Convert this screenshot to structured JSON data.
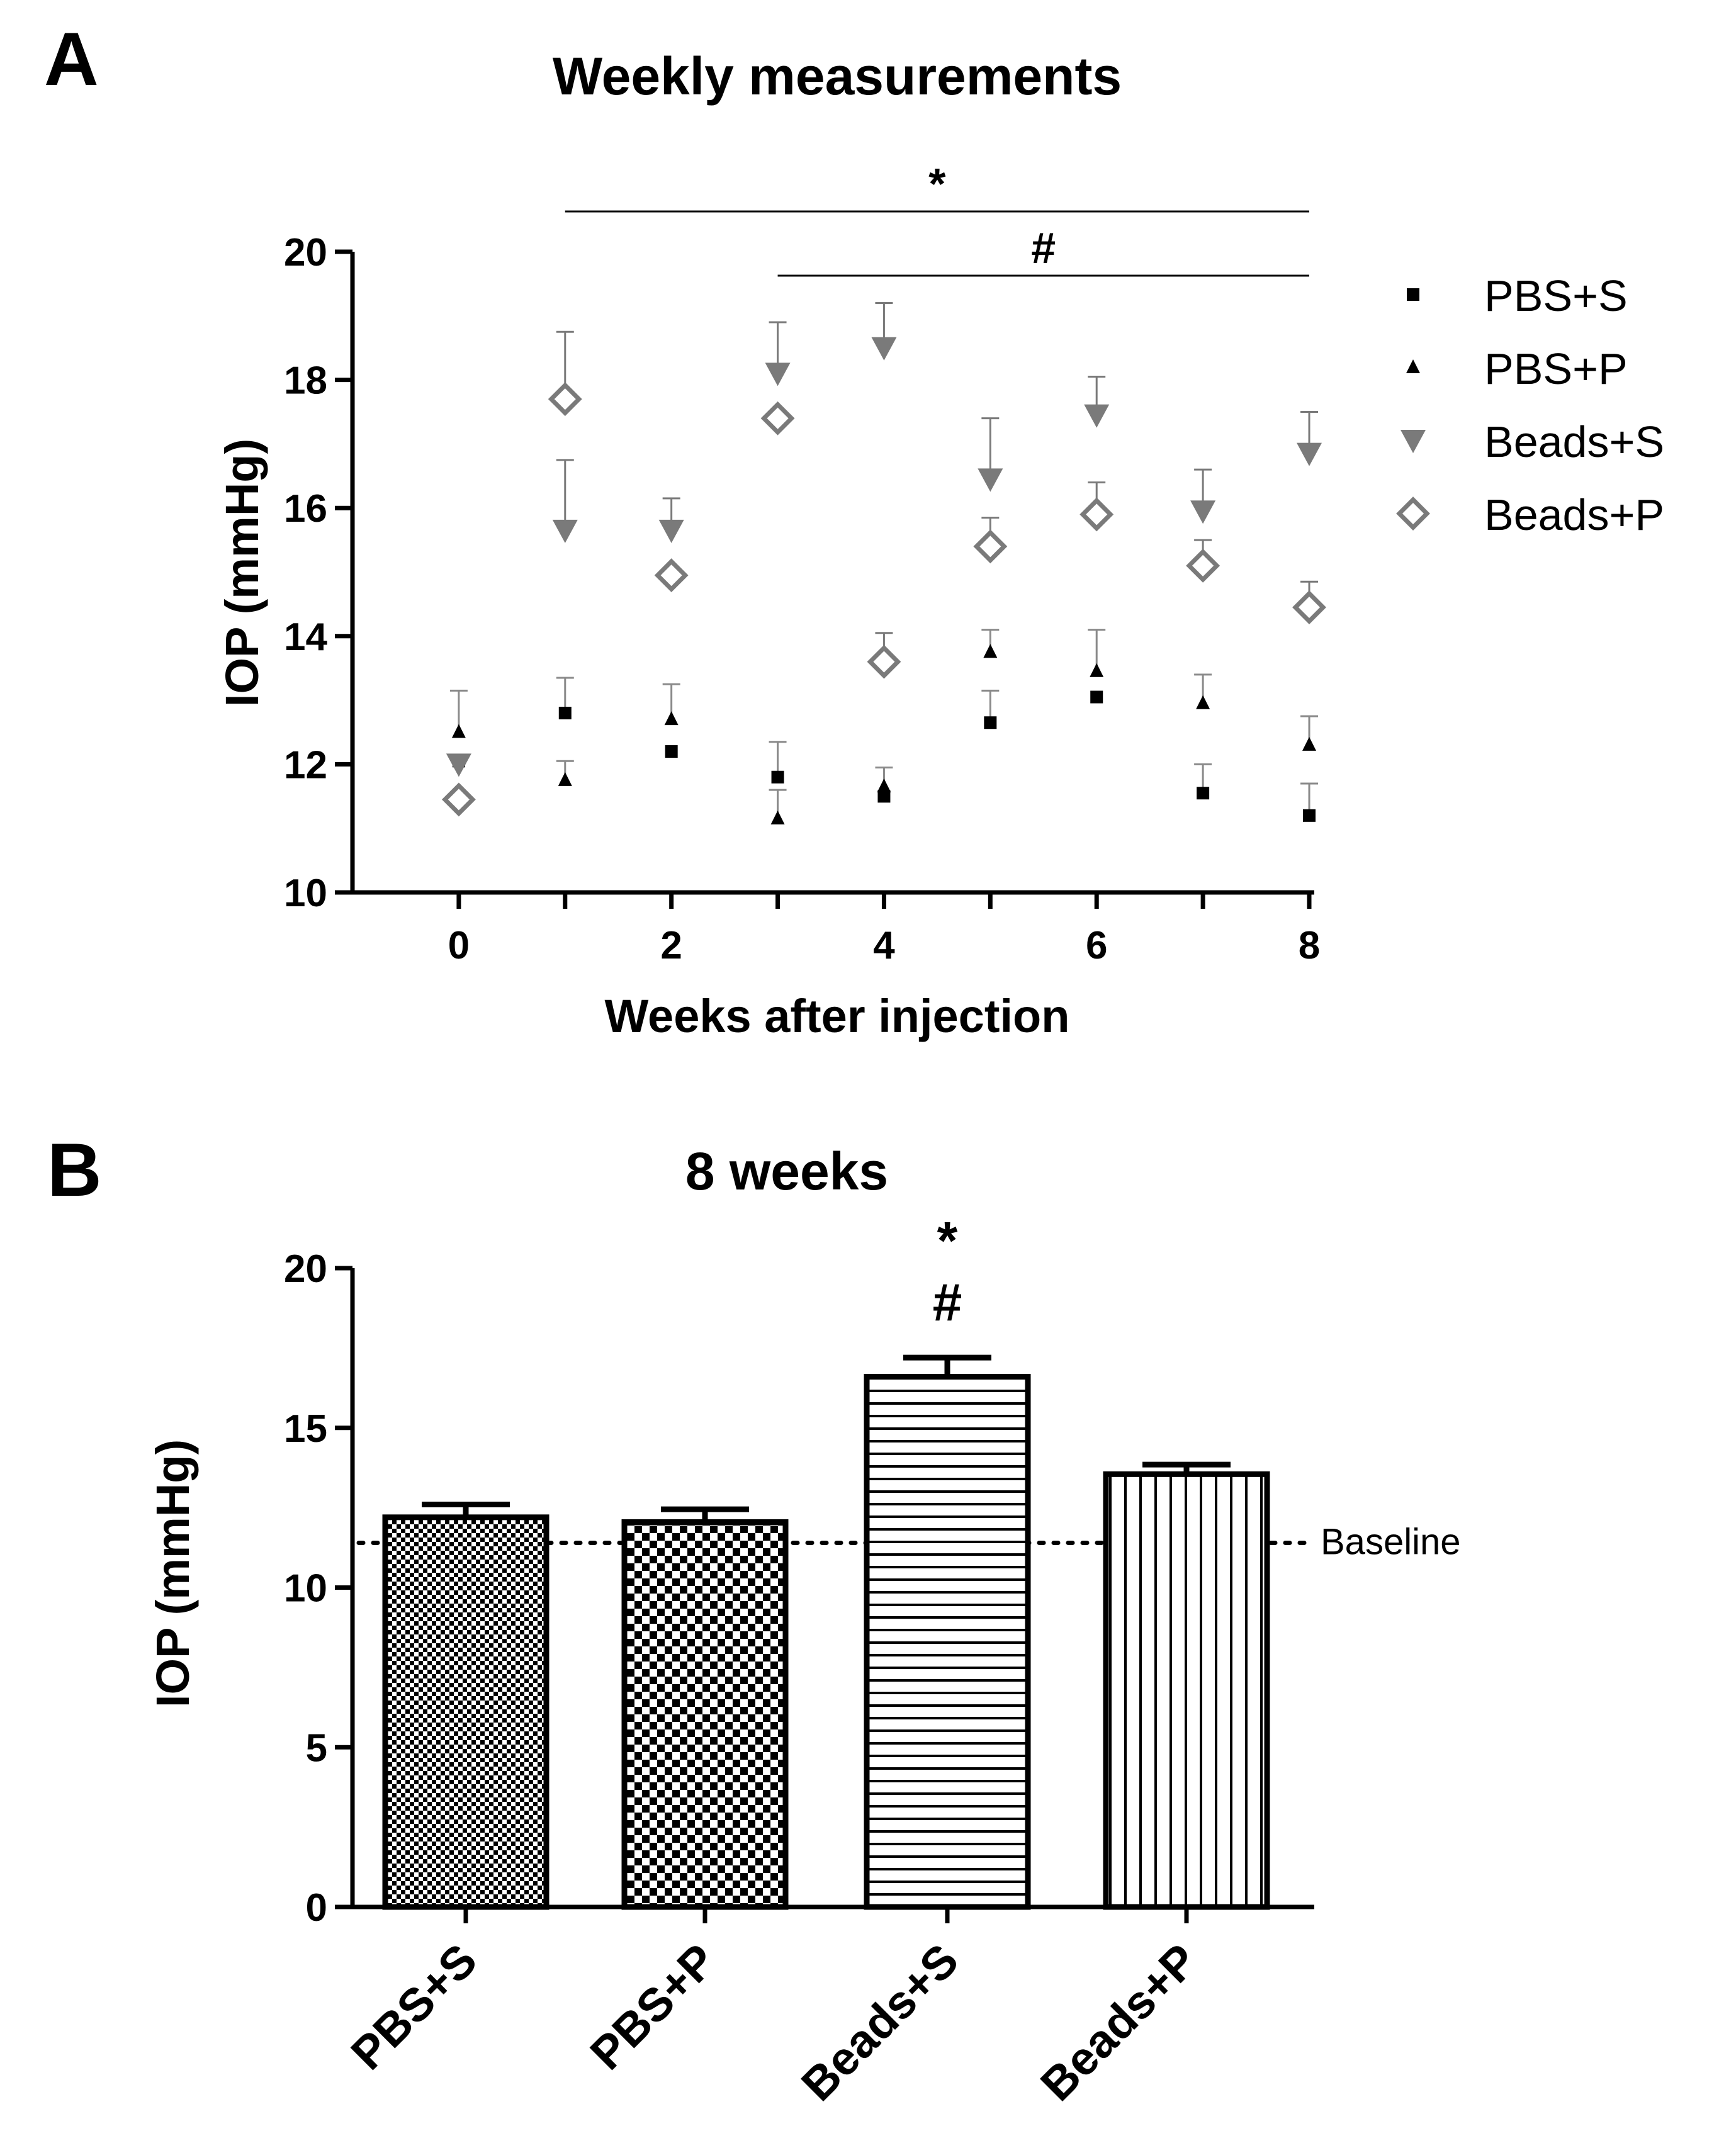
{
  "panel_labels": [
    "A",
    "B"
  ],
  "colors": {
    "black": "#000000",
    "gray": "#7a7a7a"
  },
  "chart_data": [
    {
      "type": "scatter",
      "title": "Weekly measurements",
      "xlabel": "Weeks after injection",
      "ylabel": "IOP (mmHg)",
      "xlim": [
        -1,
        8
      ],
      "ylim": [
        10,
        20
      ],
      "xticks": [
        "0",
        "2",
        "4",
        "6",
        "8"
      ],
      "yticks": [
        "10",
        "12",
        "14",
        "16",
        "18",
        "20"
      ],
      "x": [
        0,
        1,
        2,
        3,
        4,
        5,
        6,
        7,
        8
      ],
      "series": [
        {
          "name": "PBS+S",
          "marker": "square",
          "color": "#000000",
          "values": [
            12.05,
            12.8,
            12.2,
            11.8,
            11.5,
            12.65,
            13.05,
            11.55,
            11.2
          ],
          "errors": [
            null,
            0.55,
            null,
            0.55,
            0.45,
            0.5,
            null,
            0.45,
            0.5
          ]
        },
        {
          "name": "PBS+P",
          "marker": "triangle-up",
          "color": "#000000",
          "values": [
            12.5,
            11.75,
            12.7,
            11.15,
            11.65,
            13.75,
            13.45,
            12.95,
            12.3
          ],
          "errors": [
            0.65,
            0.3,
            0.55,
            0.45,
            null,
            0.35,
            0.65,
            0.45,
            0.45
          ]
        },
        {
          "name": "Beads+S",
          "marker": "triangle-down",
          "color": "#7a7a7a",
          "values": [
            12.0,
            15.65,
            15.65,
            18.1,
            18.5,
            16.45,
            17.45,
            15.95,
            16.85
          ],
          "errors": [
            null,
            1.1,
            0.5,
            0.8,
            0.7,
            0.95,
            0.6,
            0.65,
            0.65
          ]
        },
        {
          "name": "Beads+P",
          "marker": "diamond-open",
          "color": "#7a7a7a",
          "values": [
            11.45,
            17.7,
            14.95,
            17.4,
            13.6,
            15.4,
            15.9,
            15.1,
            14.45
          ],
          "errors": [
            null,
            1.05,
            null,
            null,
            0.45,
            0.45,
            0.5,
            0.4,
            0.4
          ]
        }
      ],
      "legend": "right",
      "annotations": [
        {
          "label": "*",
          "x_start": 1,
          "x_end": 8,
          "level": 19.1
        },
        {
          "label": "#",
          "x_start": 3,
          "x_end": 8,
          "level": 19.1
        }
      ]
    },
    {
      "type": "bar",
      "title": "8 weeks",
      "ylabel": "IOP (mmHg)",
      "ylim": [
        0,
        20
      ],
      "yticks": [
        "0",
        "5",
        "10",
        "15",
        "20"
      ],
      "categories": [
        "PBS+S",
        "PBS+P",
        "Beads+S",
        "Beads+P"
      ],
      "values": [
        12.2,
        12.05,
        16.6,
        13.55
      ],
      "errors": [
        0.4,
        0.4,
        0.6,
        0.3
      ],
      "patterns": [
        "checker-fine",
        "checker-coarse",
        "horizontal-lines",
        "vertical-lines"
      ],
      "baseline": {
        "value": 11.4,
        "label": "Baseline"
      },
      "annotation_labels": [
        "*",
        "#"
      ],
      "annotation_category": "Beads+S"
    }
  ]
}
